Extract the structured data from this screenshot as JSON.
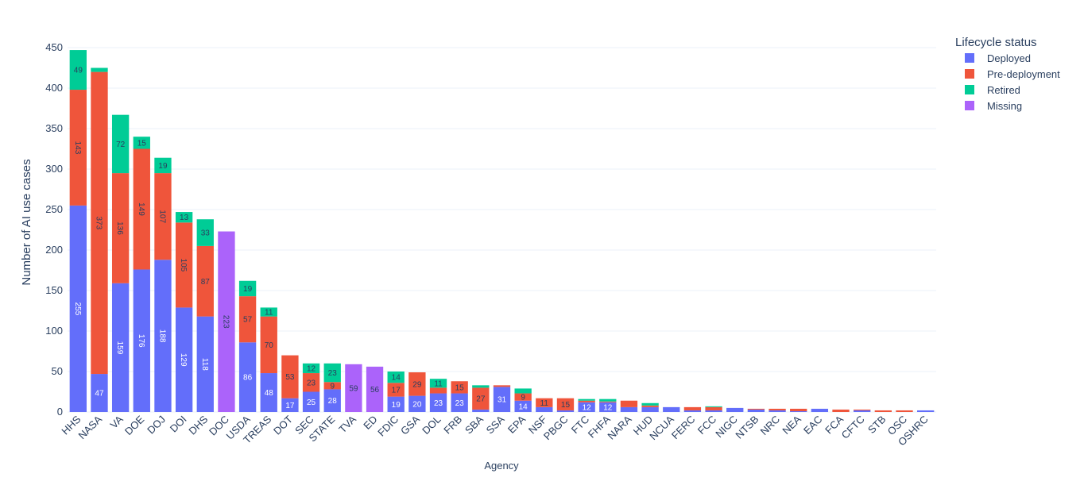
{
  "chart_data": {
    "type": "stacked-bar",
    "x_label": "Agency",
    "y_label": "Number of AI use cases",
    "legend_title": "Lifecycle status",
    "categories": [
      "HHS",
      "NASA",
      "VA",
      "DOE",
      "DOJ",
      "DOI",
      "DHS",
      "DOC",
      "USDA",
      "TREAS",
      "DOT",
      "SEC",
      "STATE",
      "TVA",
      "ED",
      "FDIC",
      "GSA",
      "DOL",
      "FRB",
      "SBA",
      "SSA",
      "EPA",
      "NSF",
      "PBGC",
      "FTC",
      "FHFA",
      "NARA",
      "HUD",
      "NCUA",
      "FERC",
      "FCC",
      "NIGC",
      "NTSB",
      "NRC",
      "NEA",
      "EAC",
      "FCA",
      "CFTC",
      "STB",
      "OSC",
      "OSHRC"
    ],
    "series": [
      {
        "name": "Deployed",
        "color": "#636efa",
        "values": [
          255,
          47,
          159,
          176,
          188,
          129,
          118,
          null,
          86,
          48,
          17,
          25,
          28,
          null,
          null,
          19,
          20,
          23,
          23,
          3,
          31,
          14,
          6,
          2,
          12,
          12,
          6,
          6,
          6,
          2,
          2,
          5,
          3,
          2,
          1,
          4,
          null,
          2,
          null,
          null,
          2
        ]
      },
      {
        "name": "Pre-deployment",
        "color": "#ef553b",
        "values": [
          143,
          373,
          136,
          149,
          107,
          105,
          87,
          null,
          57,
          70,
          53,
          23,
          9,
          null,
          null,
          17,
          29,
          7,
          15,
          27,
          2,
          9,
          11,
          15,
          2,
          1,
          8,
          2,
          null,
          4,
          4,
          null,
          1,
          2,
          3,
          null,
          3,
          1,
          2,
          2,
          null
        ]
      },
      {
        "name": "Retired",
        "color": "#00cc96",
        "values": [
          49,
          5,
          72,
          15,
          19,
          13,
          33,
          null,
          19,
          11,
          null,
          12,
          23,
          null,
          null,
          14,
          null,
          11,
          null,
          3,
          null,
          6,
          null,
          null,
          2,
          3,
          null,
          3,
          null,
          null,
          1,
          null,
          null,
          null,
          null,
          null,
          null,
          null,
          null,
          null,
          null
        ]
      },
      {
        "name": "Missing",
        "color": "#ab63fa",
        "values": [
          null,
          null,
          null,
          null,
          null,
          null,
          null,
          223,
          null,
          null,
          null,
          null,
          null,
          59,
          56,
          null,
          null,
          null,
          null,
          null,
          null,
          null,
          null,
          null,
          null,
          null,
          null,
          null,
          null,
          null,
          null,
          null,
          null,
          null,
          null,
          null,
          null,
          null,
          null,
          null,
          null
        ]
      }
    ],
    "ylim": [
      0,
      450
    ],
    "yticks": [
      0,
      50,
      100,
      150,
      200,
      250,
      300,
      350,
      400,
      450
    ],
    "grid": true
  }
}
